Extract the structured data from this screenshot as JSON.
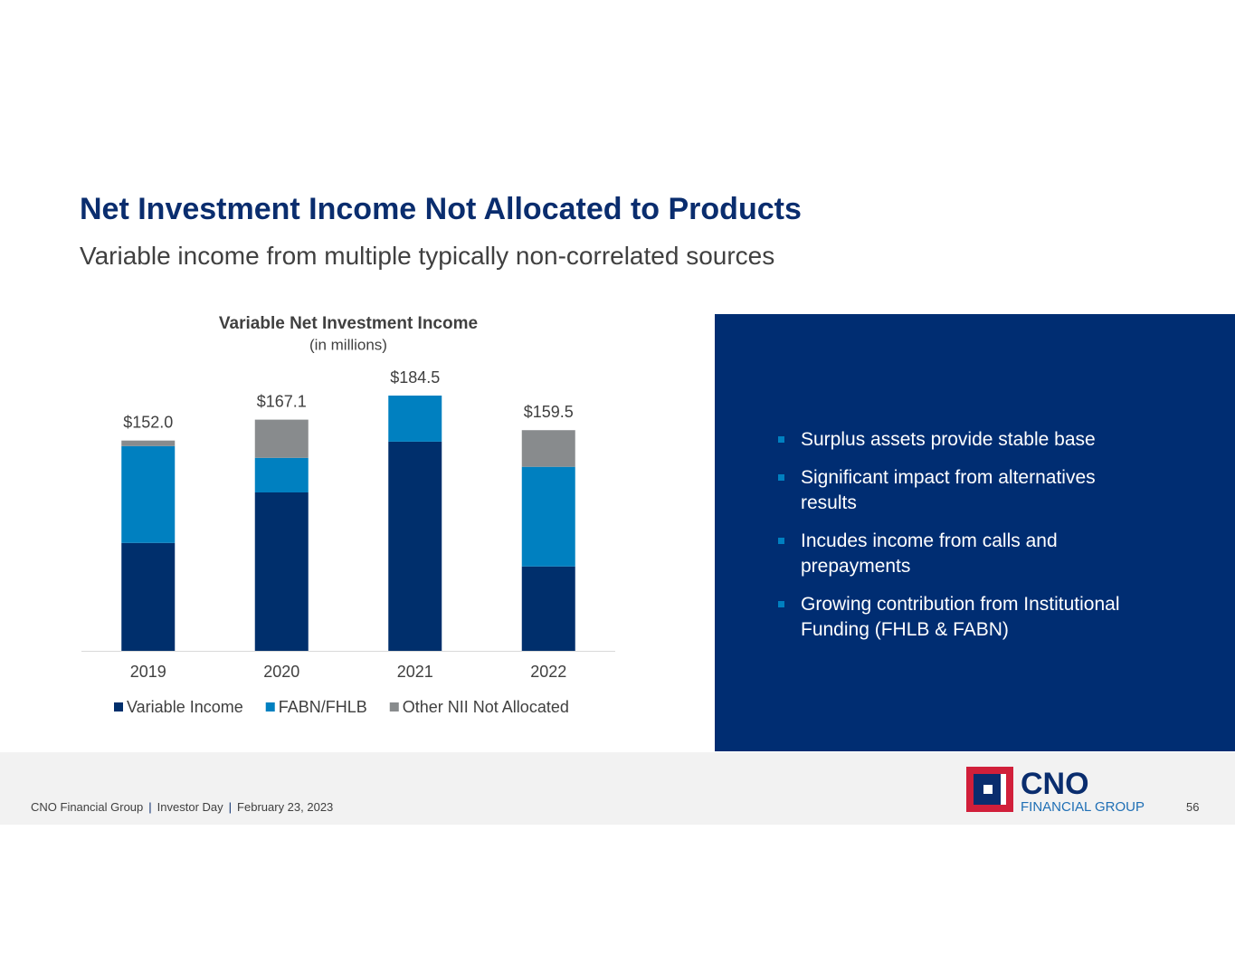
{
  "header": {
    "title": "Net Investment Income Not Allocated to Products",
    "subtitle": "Variable income from multiple typically non-correlated sources"
  },
  "chart_data": {
    "type": "stacked_bar",
    "title": "Variable Net Investment Income",
    "subtitle": "(in millions)",
    "categories": [
      "2019",
      "2020",
      "2021",
      "2022"
    ],
    "series": [
      {
        "name": "Variable Income",
        "color": "#002f6c",
        "values": [
          78,
          114.5,
          151.2,
          61
        ]
      },
      {
        "name": "FABN/FHLB",
        "color": "#0080c0",
        "values": [
          70,
          25,
          33.3,
          72
        ]
      },
      {
        "name": "Other NII Not Allocated",
        "color": "#888b8d",
        "values": [
          4,
          27.6,
          0,
          26.5
        ]
      }
    ],
    "totals": [
      152.0,
      167.1,
      184.5,
      159.5
    ],
    "value_labels": [
      "$152.0",
      "$167.1",
      "$184.5",
      "$159.5"
    ],
    "legend": "bottom"
  },
  "bullets": [
    "Surplus assets provide stable base",
    "Significant impact from alternatives results",
    "Incudes income from calls and prepayments",
    "Growing contribution from Institutional Funding (FHLB & FABN)"
  ],
  "footer": {
    "company": "CNO Financial Group",
    "event": "Investor Day",
    "date": "February 23, 2023",
    "page": "56",
    "logo_main": "CNO",
    "logo_sub": "FINANCIAL GROUP"
  }
}
